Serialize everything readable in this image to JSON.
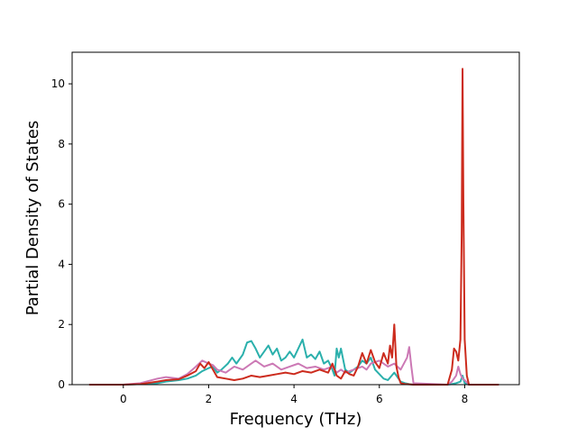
{
  "chart_data": {
    "type": "line",
    "title": "",
    "xlabel": "Frequency (THz)",
    "ylabel": "Partial Density of States",
    "xlim": [
      -1.2,
      9.28
    ],
    "ylim": [
      0,
      11.05
    ],
    "xticks": [
      0,
      2,
      4,
      6,
      8
    ],
    "yticks": [
      0,
      2,
      4,
      6,
      8,
      10
    ],
    "grid": false,
    "legend": "none",
    "series": [
      {
        "color": "#2bb0ac",
        "x": [
          -0.8,
          0.0,
          0.4,
          0.8,
          1.0,
          1.3,
          1.5,
          1.7,
          1.85,
          2.0,
          2.1,
          2.2,
          2.3,
          2.45,
          2.55,
          2.65,
          2.8,
          2.9,
          3.0,
          3.1,
          3.2,
          3.3,
          3.4,
          3.5,
          3.6,
          3.7,
          3.8,
          3.9,
          4.0,
          4.1,
          4.2,
          4.3,
          4.4,
          4.5,
          4.6,
          4.7,
          4.8,
          4.9,
          4.95,
          5.0,
          5.05,
          5.1,
          5.2,
          5.3,
          5.4,
          5.5,
          5.6,
          5.7,
          5.8,
          5.9,
          6.0,
          6.1,
          6.2,
          6.35,
          6.5,
          6.6,
          6.7,
          6.8,
          7.6,
          7.7,
          7.8,
          7.9,
          7.95,
          8.0,
          8.1,
          8.8
        ],
        "y": [
          0,
          0,
          0.02,
          0.05,
          0.1,
          0.15,
          0.2,
          0.3,
          0.45,
          0.55,
          0.6,
          0.4,
          0.5,
          0.7,
          0.9,
          0.7,
          1.0,
          1.4,
          1.45,
          1.2,
          0.9,
          1.1,
          1.3,
          1.0,
          1.2,
          0.8,
          0.9,
          1.1,
          0.9,
          1.2,
          1.5,
          0.9,
          1.0,
          0.85,
          1.1,
          0.7,
          0.8,
          0.5,
          0.3,
          1.2,
          0.9,
          1.2,
          0.5,
          0.4,
          0.5,
          0.6,
          0.8,
          0.7,
          0.9,
          0.5,
          0.35,
          0.2,
          0.15,
          0.4,
          0.1,
          0.05,
          0.02,
          0,
          0,
          0.02,
          0.05,
          0.1,
          0.3,
          0.05,
          0,
          0
        ]
      },
      {
        "color": "#cc79b5",
        "x": [
          -0.8,
          0.0,
          0.4,
          0.8,
          1.0,
          1.3,
          1.5,
          1.7,
          1.85,
          2.0,
          2.1,
          2.2,
          2.4,
          2.6,
          2.8,
          3.0,
          3.1,
          3.3,
          3.5,
          3.7,
          3.9,
          4.1,
          4.3,
          4.5,
          4.7,
          4.9,
          5.0,
          5.1,
          5.2,
          5.4,
          5.6,
          5.7,
          5.8,
          6.0,
          6.2,
          6.35,
          6.5,
          6.65,
          6.7,
          6.75,
          6.8,
          7.6,
          7.7,
          7.8,
          7.85,
          7.9,
          7.95,
          8.0,
          8.1,
          8.8
        ],
        "y": [
          0,
          0,
          0.05,
          0.2,
          0.25,
          0.2,
          0.35,
          0.6,
          0.8,
          0.7,
          0.65,
          0.5,
          0.4,
          0.6,
          0.5,
          0.7,
          0.8,
          0.6,
          0.7,
          0.5,
          0.6,
          0.7,
          0.55,
          0.6,
          0.5,
          0.6,
          0.4,
          0.5,
          0.4,
          0.5,
          0.6,
          0.5,
          0.7,
          0.8,
          0.6,
          0.7,
          0.5,
          0.9,
          1.25,
          0.6,
          0.05,
          0,
          0.1,
          0.3,
          0.6,
          0.35,
          0.2,
          0.15,
          0,
          0
        ]
      },
      {
        "color": "#cc2b1d",
        "x": [
          -0.8,
          0.0,
          0.4,
          0.8,
          1.0,
          1.3,
          1.5,
          1.7,
          1.8,
          1.9,
          2.0,
          2.1,
          2.2,
          2.4,
          2.6,
          2.8,
          3.0,
          3.2,
          3.4,
          3.6,
          3.8,
          4.0,
          4.2,
          4.4,
          4.6,
          4.8,
          4.9,
          5.0,
          5.1,
          5.2,
          5.3,
          5.4,
          5.5,
          5.6,
          5.7,
          5.8,
          5.9,
          6.0,
          6.1,
          6.2,
          6.25,
          6.3,
          6.35,
          6.4,
          6.45,
          6.5,
          6.6,
          6.7,
          6.8,
          7.6,
          7.7,
          7.75,
          7.8,
          7.85,
          7.9,
          7.93,
          7.95,
          7.97,
          8.0,
          8.05,
          8.1,
          8.8
        ],
        "y": [
          0,
          0,
          0.02,
          0.1,
          0.15,
          0.18,
          0.3,
          0.45,
          0.7,
          0.55,
          0.75,
          0.5,
          0.25,
          0.2,
          0.15,
          0.2,
          0.3,
          0.25,
          0.3,
          0.35,
          0.4,
          0.35,
          0.45,
          0.4,
          0.5,
          0.4,
          0.7,
          0.3,
          0.2,
          0.45,
          0.35,
          0.3,
          0.6,
          1.05,
          0.7,
          1.15,
          0.75,
          0.55,
          1.05,
          0.7,
          1.3,
          0.9,
          2.0,
          0.6,
          0.25,
          0.05,
          0.02,
          0.01,
          0,
          0,
          0.5,
          1.2,
          1.1,
          0.8,
          1.5,
          5.0,
          10.5,
          6.0,
          1.5,
          0.3,
          0,
          0
        ]
      }
    ]
  }
}
